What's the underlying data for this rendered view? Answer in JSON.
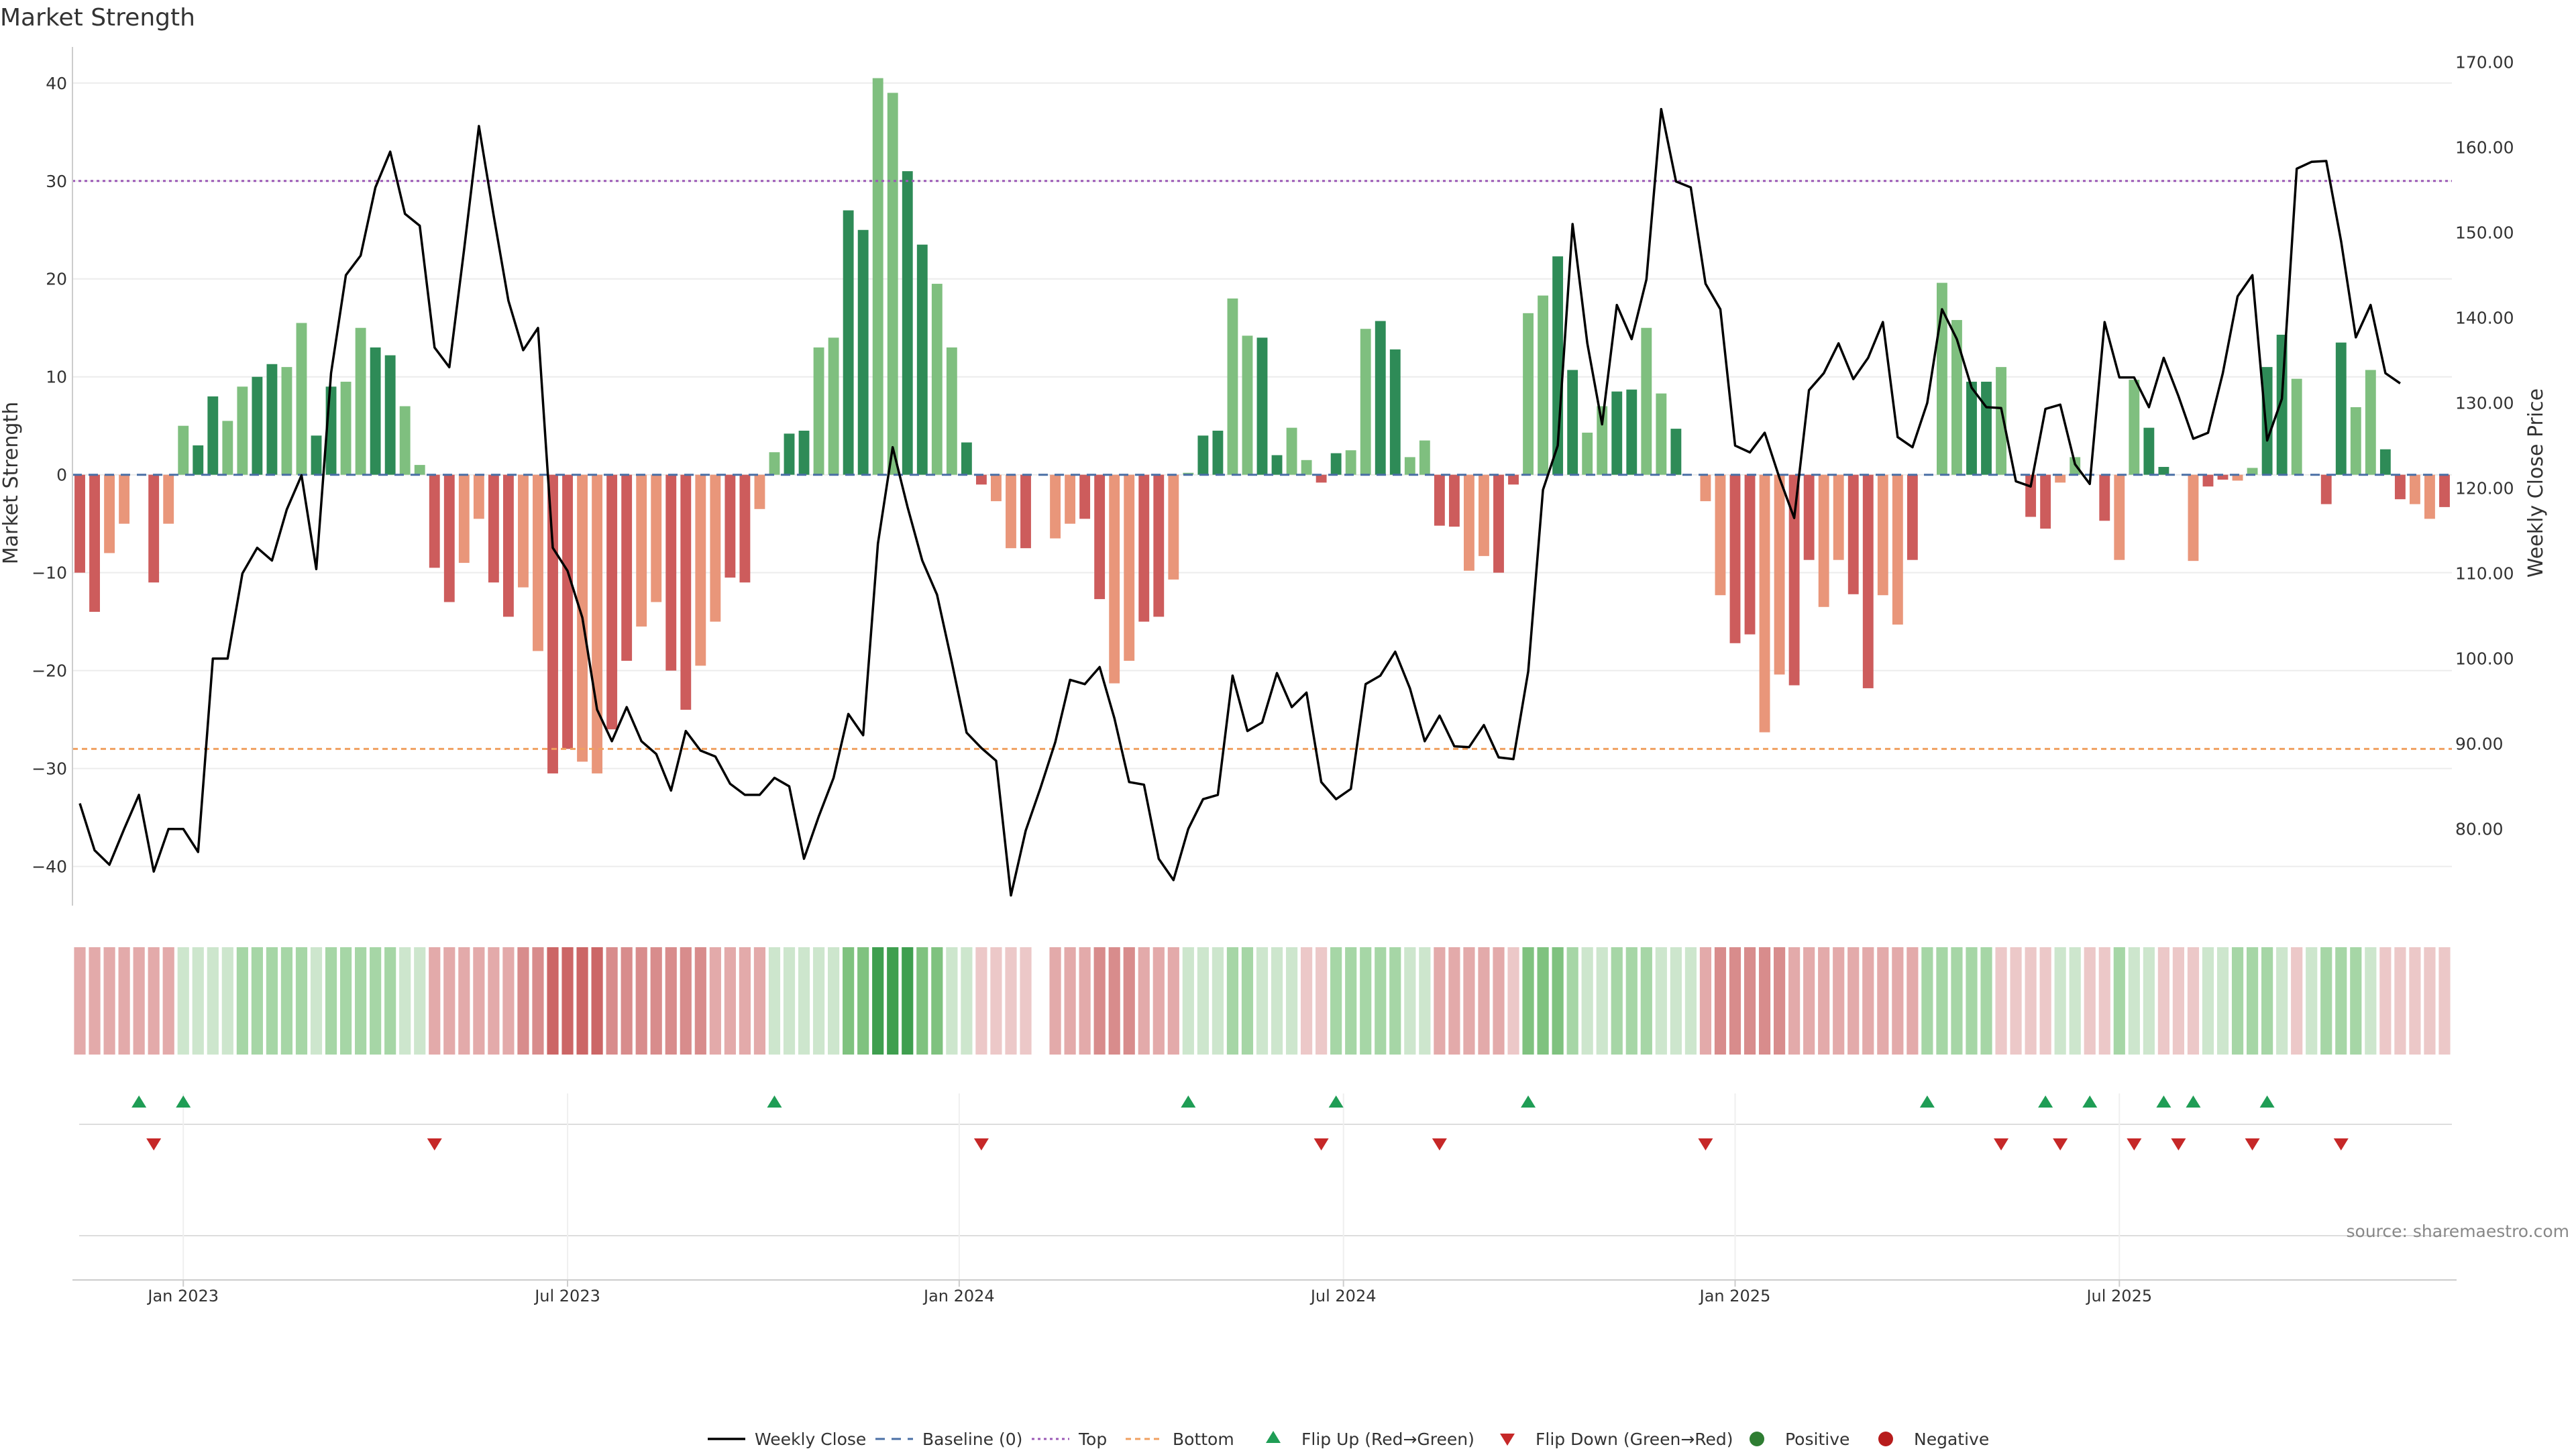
{
  "chart_data": {
    "type": "bar",
    "title": "Market Strength",
    "ylabel": "Market Strength",
    "y2label": "Weekly Close Price",
    "source": "source: sharemaestro.com",
    "ylim": [
      -44,
      43
    ],
    "y2lim": [
      71,
      171
    ],
    "yticks": [
      40,
      30,
      20,
      10,
      0,
      -10,
      -20,
      -30,
      -40
    ],
    "ytick_labels": [
      "40",
      "30",
      "20",
      "10",
      "0",
      "−10",
      "−20",
      "−30",
      "−40"
    ],
    "y2ticks": [
      170,
      160,
      150,
      140,
      130,
      120,
      110,
      100,
      90,
      80
    ],
    "y2tick_labels": [
      "170.00",
      "160.00",
      "150.00",
      "140.00",
      "130.00",
      "120.00",
      "110.00",
      "100.00",
      "90.00",
      "80.00"
    ],
    "x_ticks": [
      {
        "label": "Jan 2023",
        "week": 7
      },
      {
        "label": "Jul 2023",
        "week": 33
      },
      {
        "label": "Jan 2024",
        "week": 59.5
      },
      {
        "label": "Jul 2024",
        "week": 85.5
      },
      {
        "label": "Jan 2025",
        "week": 112
      },
      {
        "label": "Jul 2025",
        "week": 138
      }
    ],
    "top_line": 30,
    "bottom_line": -28,
    "strength": [
      -10,
      -14,
      -8,
      -5,
      0,
      -11,
      -5,
      5,
      3,
      8,
      5.5,
      9,
      10,
      11.3,
      11,
      15.5,
      4,
      9,
      9.5,
      15,
      13,
      12.2,
      7,
      1,
      -9.5,
      -13,
      -9,
      -4.5,
      -11,
      -14.5,
      -11.5,
      -18,
      -30.5,
      -28,
      -29.3,
      -30.5,
      -26,
      -19,
      -15.5,
      -13,
      -20,
      -24,
      -19.5,
      -15,
      -10.5,
      -11,
      -3.5,
      2.3,
      4.2,
      4.5,
      13,
      14,
      27,
      25,
      40.5,
      39,
      31,
      23.5,
      19.5,
      13,
      3.3,
      -1,
      -2.7,
      -7.5,
      -7.5,
      0,
      -6.5,
      -5,
      -4.5,
      -12.7,
      -21.3,
      -19,
      -15,
      -14.5,
      -10.7,
      0.2,
      4,
      4.5,
      18,
      14.2,
      14,
      2,
      4.8,
      1.5,
      -0.8,
      2.2,
      2.5,
      14.9,
      15.7,
      12.8,
      1.8,
      3.5,
      -5.2,
      -5.3,
      -9.8,
      -8.3,
      -10,
      -1,
      16.5,
      18.3,
      22.3,
      10.7,
      4.3,
      7,
      8.5,
      8.7,
      15,
      8.3,
      4.7,
      0,
      -2.7,
      -12.3,
      -17.2,
      -16.3,
      -26.3,
      -20.4,
      -21.5,
      -8.7,
      -13.5,
      -8.7,
      -12.2,
      -21.8,
      -12.3,
      -15.3,
      -8.7,
      0,
      19.6,
      15.8,
      9.5,
      9.5,
      11,
      0,
      -4.3,
      -5.5,
      -0.8,
      1.8,
      0,
      -4.7,
      -8.7,
      9.7,
      4.8,
      0.8,
      0,
      -8.8,
      -1.2,
      -0.5,
      -0.6,
      0.7,
      11,
      14.3,
      9.8,
      0,
      -3,
      13.5,
      6.9,
      10.7,
      2.6,
      -2.5,
      -3,
      -4.5,
      -3.3
    ],
    "close": [
      83,
      77.5,
      75.8,
      80,
      84,
      75,
      80,
      80,
      77.3,
      100,
      100,
      110,
      113,
      111.5,
      117.5,
      121.5,
      110.5,
      133.5,
      145,
      147.3,
      155.3,
      159.5,
      152.2,
      150.8,
      136.5,
      134.2,
      148,
      162.5,
      152,
      142,
      136.2,
      138.8,
      113,
      110.3,
      104.8,
      94,
      90.3,
      94.3,
      90.3,
      88.8,
      84.5,
      91.5,
      89.2,
      88.5,
      85.3,
      84,
      84,
      86,
      85,
      76.5,
      81.5,
      86,
      93.5,
      91,
      113.5,
      124.8,
      117.8,
      111.5,
      107.5,
      99.6,
      91.3,
      89.5,
      88,
      72.2,
      79.8,
      84.8,
      90.2,
      97.5,
      97,
      99,
      93,
      85.5,
      85.2,
      76.5,
      74,
      80,
      83.5,
      84,
      98,
      91.5,
      92.5,
      98.3,
      94.3,
      96,
      85.5,
      83.5,
      84.7,
      97,
      98,
      100.8,
      96.5,
      90.3,
      93.3,
      89.7,
      89.6,
      92.2,
      88.4,
      88.2,
      98.5,
      119.8,
      125,
      151,
      137,
      127.5,
      141.5,
      137.5,
      144.5,
      164.5,
      156,
      155.3,
      144,
      141,
      125,
      124.2,
      126.5,
      121.2,
      116.5,
      131.5,
      133.5,
      137,
      132.8,
      135.3,
      139.5,
      126,
      124.8,
      130,
      141,
      137.5,
      131.8,
      129.5,
      129.4,
      120.8,
      120.2,
      129.3,
      129.8,
      122.8,
      120.5,
      139.5,
      133,
      133,
      129.5,
      135.3,
      130.8,
      125.8,
      126.5,
      133.5,
      142.5,
      145,
      125.6,
      130.5,
      157.5,
      158.3,
      158.4,
      149,
      137.7,
      141.5,
      133.5,
      132.3
    ],
    "heat": [
      -2,
      -2,
      -2,
      -2,
      -2,
      -2,
      -2,
      1,
      1,
      1,
      1,
      2,
      2,
      2,
      2,
      2,
      1,
      2,
      2,
      2,
      2,
      2,
      1,
      1,
      -2,
      -2,
      -2,
      -2,
      -2,
      -2,
      -3,
      -3,
      -4,
      -4,
      -4,
      -4,
      -3,
      -3,
      -3,
      -3,
      -3,
      -3,
      -3,
      -2,
      -2,
      -2,
      -2,
      1,
      1,
      1,
      1,
      1,
      3,
      3,
      4,
      4,
      4,
      3,
      3,
      1,
      1,
      -1,
      -1,
      -1,
      -1,
      null,
      -2,
      -2,
      -2,
      -3,
      -3,
      -3,
      -2,
      -2,
      -2,
      1,
      1,
      1,
      2,
      2,
      1,
      1,
      1,
      -1,
      -1,
      2,
      2,
      2,
      2,
      2,
      1,
      1,
      -2,
      -2,
      -2,
      -2,
      -2,
      -1,
      3,
      3,
      3,
      2,
      1,
      1,
      2,
      2,
      2,
      1,
      1,
      1,
      -2,
      -3,
      -3,
      -3,
      -3,
      -3,
      -2,
      -2,
      -2,
      -2,
      -2,
      -2,
      -2,
      -2,
      -2,
      2,
      2,
      2,
      2,
      2,
      -1,
      -1,
      -1,
      -1,
      1,
      1,
      -1,
      -1,
      2,
      1,
      1,
      -1,
      -1,
      -1,
      1,
      1,
      2,
      2,
      2,
      1,
      -1,
      1,
      2,
      2,
      2,
      1,
      -1,
      -1,
      -1,
      -1,
      -1
    ],
    "flip_up_weeks": [
      4,
      7,
      47,
      75,
      85,
      98,
      125,
      133,
      136,
      141,
      143,
      148
    ],
    "flip_down_weeks": [
      5,
      24,
      61,
      84,
      92,
      110,
      130,
      134,
      139,
      142,
      147,
      153
    ],
    "legend": [
      "Weekly Close",
      "Baseline (0)",
      "Top",
      "Bottom",
      "Flip Up (Red→Green)",
      "Flip Down (Green→Red)",
      "Positive",
      "Negative"
    ],
    "colors": {
      "strong_green": "#2e8b57",
      "light_green": "#7fbf7f",
      "strong_red": "#cd5c5c",
      "light_red": "#e9967a",
      "line": "#000000",
      "top": "#9b59b6",
      "bottom": "#f0a060",
      "baseline": "#4a6fa5",
      "flip_up": "#1f9d55",
      "flip_down": "#c62828",
      "positive": "#2e7d32",
      "negative": "#b71c1c"
    }
  }
}
